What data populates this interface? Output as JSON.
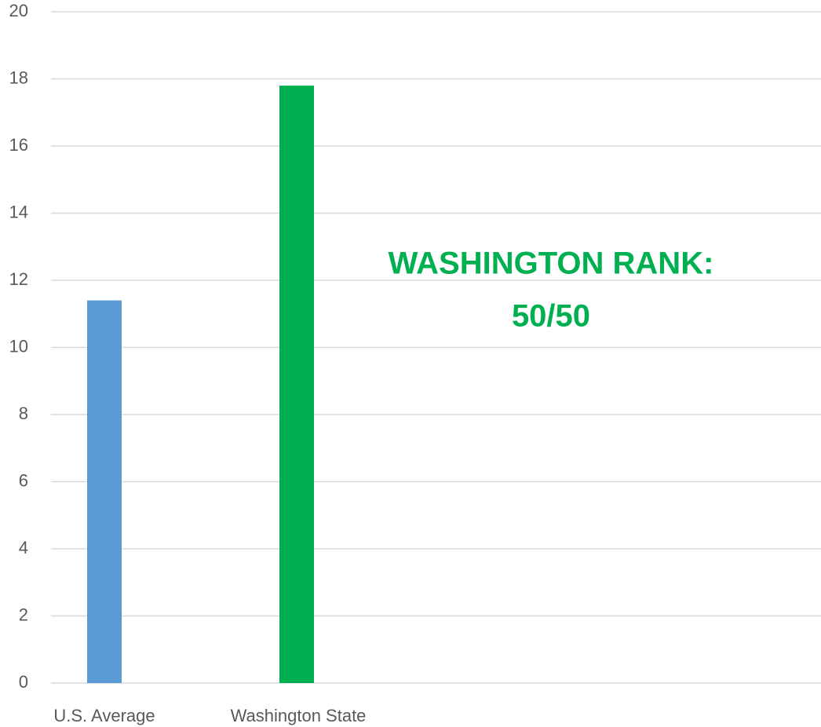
{
  "chart_data": {
    "type": "bar",
    "categories": [
      "U.S. Average",
      "Washington State"
    ],
    "values": [
      11.4,
      17.8
    ],
    "colors": [
      "#5b9bd5",
      "#00b050"
    ],
    "ylim": [
      0,
      20
    ],
    "yticks": [
      0,
      2,
      4,
      6,
      8,
      10,
      12,
      14,
      16,
      18,
      20
    ],
    "grid": true,
    "annotation": [
      "WASHINGTON RANK:",
      "50/50"
    ]
  }
}
